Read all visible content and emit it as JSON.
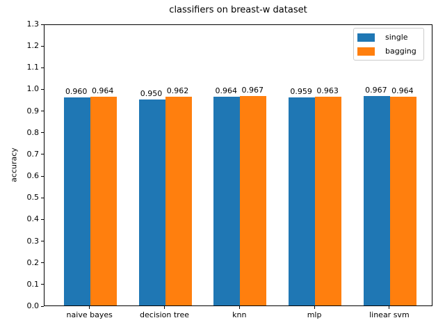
{
  "chart_data": {
    "type": "bar",
    "title": "classifiers on breast-w dataset",
    "xlabel": "",
    "ylabel": "accuracy",
    "categories": [
      "naive bayes",
      "decision tree",
      "knn",
      "mlp",
      "linear svm"
    ],
    "series": [
      {
        "name": "single",
        "color": "#1f77b4",
        "values": [
          0.96,
          0.95,
          0.964,
          0.959,
          0.967
        ],
        "value_labels": [
          "0.960",
          "0.950",
          "0.964",
          "0.959",
          "0.967"
        ]
      },
      {
        "name": "bagging",
        "color": "#ff7f0e",
        "values": [
          0.964,
          0.962,
          0.967,
          0.963,
          0.964
        ],
        "value_labels": [
          "0.964",
          "0.962",
          "0.967",
          "0.963",
          "0.964"
        ]
      }
    ],
    "ylim": [
      0.0,
      1.3
    ],
    "ytick_labels": [
      "0.0",
      "0.1",
      "0.2",
      "0.3",
      "0.4",
      "0.5",
      "0.6",
      "0.7",
      "0.8",
      "0.9",
      "1.0",
      "1.1",
      "1.2",
      "1.3"
    ],
    "grid": false,
    "legend": {
      "position": "upper right",
      "entries": [
        "single",
        "bagging"
      ]
    }
  }
}
